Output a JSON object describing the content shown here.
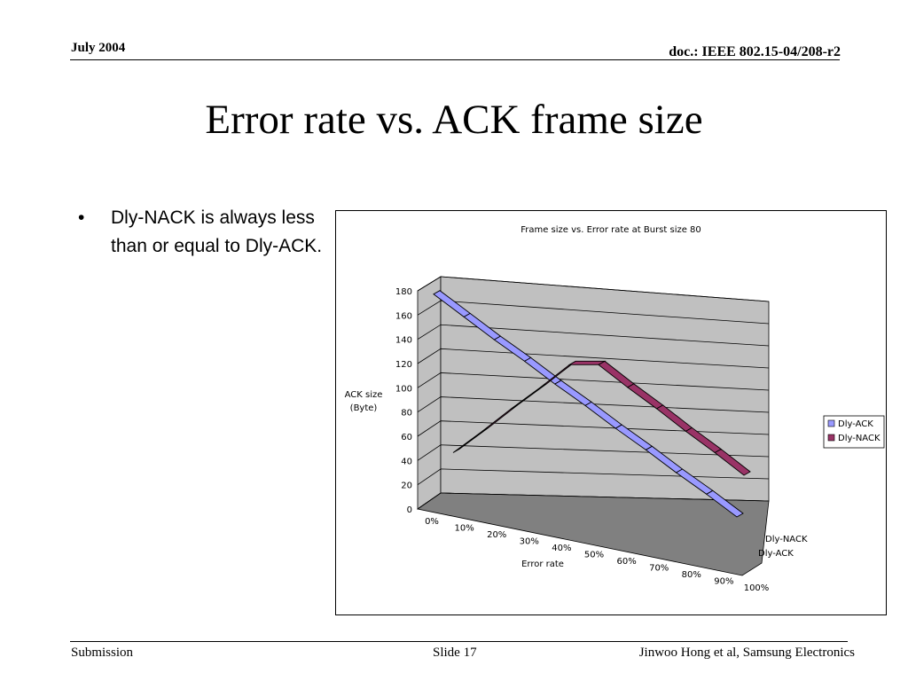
{
  "header": {
    "date": "July 2004",
    "doc": "doc.: IEEE 802.15-04/208-r2"
  },
  "slide_title": "Error rate vs. ACK frame size",
  "bullets": [
    "Dly-NACK is always less than or equal to Dly-ACK."
  ],
  "footer": {
    "left": "Submission",
    "center": "Slide 17",
    "right": "Jinwoo Hong et al, Samsung Electronics"
  },
  "colors": {
    "dly_ack": "#9999ff",
    "dly_nack": "#993366",
    "wall": "#c0c0c0",
    "floor": "#808080"
  },
  "chart_data": {
    "type": "line",
    "title": "Frame size vs. Error rate at Burst size 80",
    "xlabel": "Error rate",
    "ylabel": [
      "ACK size",
      "(Byte)"
    ],
    "ylim": [
      0,
      180
    ],
    "yticks": [
      "0",
      "20",
      "40",
      "60",
      "80",
      "100",
      "120",
      "140",
      "160",
      "180"
    ],
    "categories": [
      "0%",
      "10%",
      "20%",
      "30%",
      "40%",
      "50%",
      "60%",
      "70%",
      "80%",
      "90%",
      "100%"
    ],
    "depth_labels": [
      "Dly-NACK",
      "Dly-ACK"
    ],
    "legend_position": "right",
    "series": [
      {
        "name": "Dly-ACK",
        "values": [
          176,
          158,
          140,
          123,
          105,
          88,
          70,
          53,
          35,
          18,
          0
        ]
      },
      {
        "name": "Dly-NACK",
        "values": [
          18,
          35,
          53,
          70,
          88,
          88,
          70,
          53,
          35,
          18,
          0
        ]
      }
    ]
  }
}
